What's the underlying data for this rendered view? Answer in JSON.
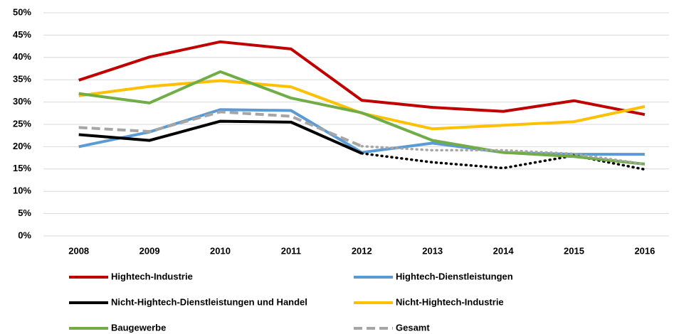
{
  "chart_data": {
    "type": "line",
    "categories": [
      "2008",
      "2009",
      "2010",
      "2011",
      "2012",
      "2013",
      "2014",
      "2015",
      "2016"
    ],
    "ylim": [
      0,
      50
    ],
    "yticks": [
      {
        "value": 0,
        "label": "0%"
      },
      {
        "value": 5,
        "label": "5%"
      },
      {
        "value": 10,
        "label": "10%"
      },
      {
        "value": 15,
        "label": "15%"
      },
      {
        "value": 20,
        "label": "20%"
      },
      {
        "value": 25,
        "label": "25%"
      },
      {
        "value": 30,
        "label": "30%"
      },
      {
        "value": 35,
        "label": "35%"
      },
      {
        "value": 40,
        "label": "40%"
      },
      {
        "value": 45,
        "label": "45%"
      },
      {
        "value": 50,
        "label": "50%"
      }
    ],
    "grid": true,
    "series": [
      {
        "name": "Hightech-Industrie",
        "color": "#c00000",
        "values": [
          34.9,
          40.1,
          43.5,
          41.9,
          30.4,
          28.8,
          27.9,
          30.3,
          27.2
        ]
      },
      {
        "name": "Hightech-Dienstleistungen",
        "color": "#5b9bd5",
        "values": [
          20.0,
          23.3,
          28.3,
          28.1,
          18.7,
          20.8,
          18.7,
          18.3,
          18.3
        ]
      },
      {
        "name": "Nicht-Hightech-Dienstleistungen und Handel",
        "color": "#000000",
        "values": [
          22.7,
          21.4,
          25.7,
          25.5,
          18.5,
          16.5,
          15.2,
          18.0,
          14.9
        ],
        "dotted_from": 4
      },
      {
        "name": "Nicht-Hightech-Industrie",
        "color": "#ffc000",
        "values": [
          31.4,
          33.5,
          34.8,
          33.4,
          27.5,
          24.0,
          24.8,
          25.6,
          29.0
        ]
      },
      {
        "name": "Baugewerbe",
        "color": "#70ad47",
        "values": [
          31.9,
          29.8,
          36.8,
          30.9,
          27.6,
          21.4,
          18.7,
          17.8,
          16.1
        ]
      },
      {
        "name": "Gesamt",
        "color": "#a6a6a6",
        "values": [
          24.3,
          23.4,
          27.8,
          26.8,
          20.1,
          19.2,
          19.2,
          18.4,
          16.1
        ],
        "dashed": true,
        "dotted_from": 4
      }
    ]
  }
}
